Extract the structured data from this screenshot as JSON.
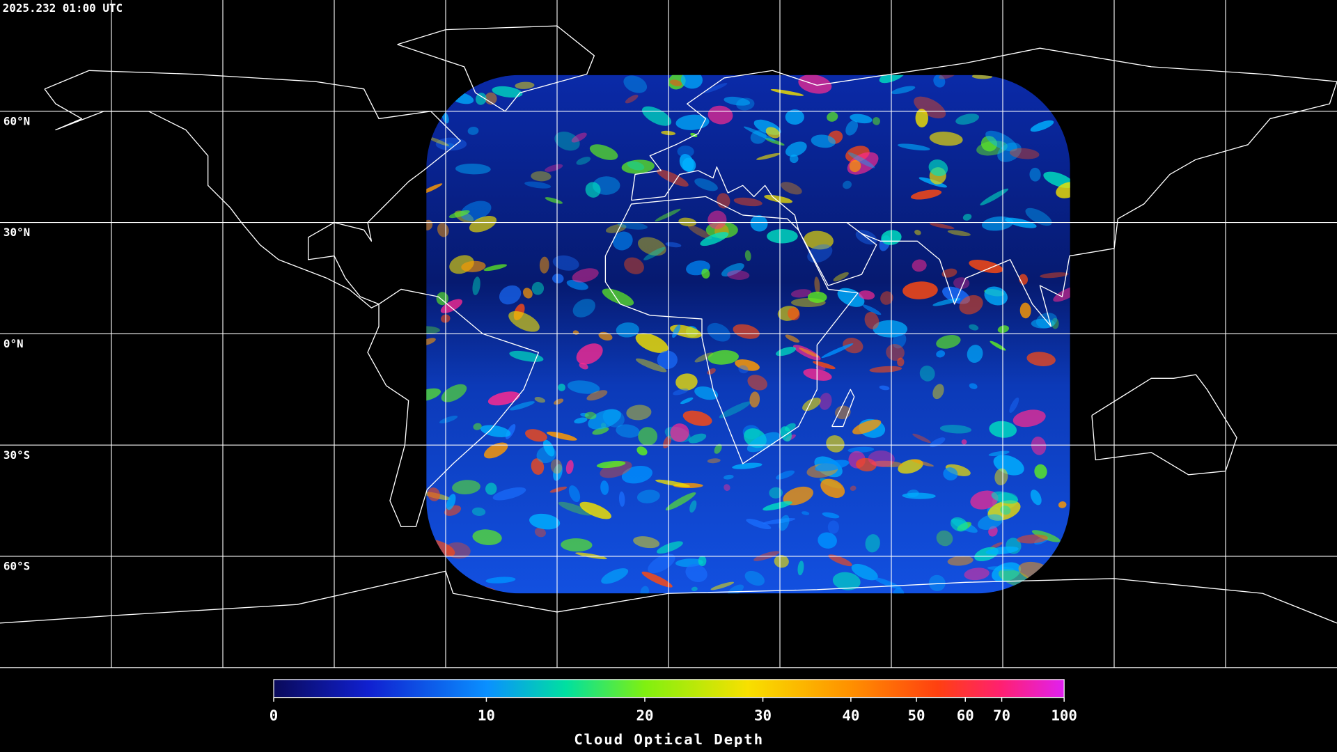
{
  "timestamp": "2025.232 01:00 UTC",
  "latitude_labels": [
    "60°N",
    "30°N",
    "0°N",
    "30°S",
    "60°S"
  ],
  "colorbar": {
    "label": "Cloud Optical Depth",
    "lim": [
      0,
      100
    ],
    "ticks": [
      0,
      10,
      20,
      30,
      40,
      50,
      60,
      70,
      100
    ]
  }
}
